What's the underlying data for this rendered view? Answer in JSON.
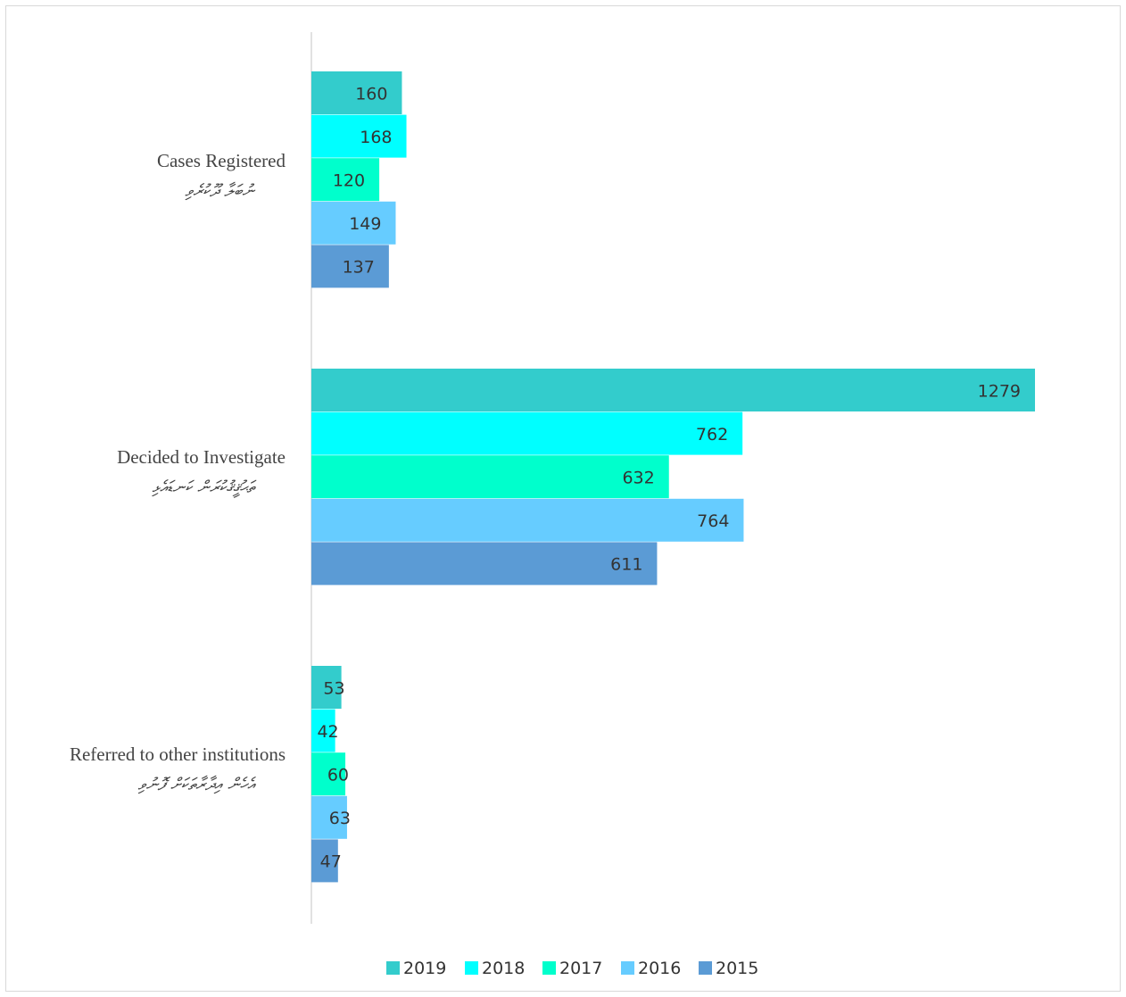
{
  "chart_data": {
    "type": "bar",
    "orientation": "horizontal",
    "categories": [
      {
        "label": "Cases Registered",
        "label_dv": "ނުބަލާ ދޫކުރެވި"
      },
      {
        "label": "Decided to Investigate",
        "label_dv": "ތަޙުޤީޤުކުރަން ކަނޑައެޅި"
      },
      {
        "label": "Referred to other institutions",
        "label_dv": "އެހެން އިދާރާތަކަށް ފޮނުވި"
      }
    ],
    "series": [
      {
        "name": "2019",
        "color": "#33CCCC",
        "values": [
          160,
          1279,
          53
        ]
      },
      {
        "name": "2018",
        "color": "#00FFFF",
        "values": [
          168,
          762,
          42
        ]
      },
      {
        "name": "2017",
        "color": "#00FFCC",
        "values": [
          120,
          632,
          60
        ]
      },
      {
        "name": "2016",
        "color": "#66CCFF",
        "values": [
          149,
          764,
          63
        ]
      },
      {
        "name": "2015",
        "color": "#5B9BD5",
        "values": [
          137,
          611,
          47
        ]
      }
    ],
    "xlim": [
      0,
      1279
    ],
    "grid": false,
    "data_labels": true,
    "legend_position": "bottom"
  }
}
